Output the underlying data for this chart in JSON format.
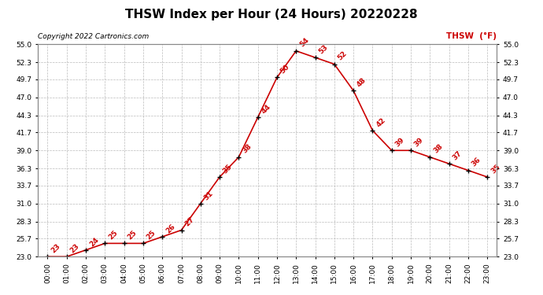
{
  "title": "THSW Index per Hour (24 Hours) 20220228",
  "copyright": "Copyright 2022 Cartronics.com",
  "legend_label": "THSW  (°F)",
  "hours": [
    0,
    1,
    2,
    3,
    4,
    5,
    6,
    7,
    8,
    9,
    10,
    11,
    12,
    13,
    14,
    15,
    16,
    17,
    18,
    19,
    20,
    21,
    22,
    23
  ],
  "values": [
    23,
    23,
    24,
    25,
    25,
    25,
    26,
    27,
    31,
    35,
    38,
    44,
    50,
    54,
    53,
    52,
    48,
    42,
    39,
    39,
    38,
    37,
    36,
    35
  ],
  "line_color": "#cc0000",
  "marker_color": "#000000",
  "label_color": "#cc0000",
  "ylim_min": 23.0,
  "ylim_max": 55.0,
  "yticks": [
    23.0,
    25.7,
    28.3,
    31.0,
    33.7,
    36.3,
    39.0,
    41.7,
    44.3,
    47.0,
    49.7,
    52.3,
    55.0
  ],
  "background_color": "#ffffff",
  "grid_color": "#bbbbbb",
  "title_fontsize": 11,
  "label_fontsize": 6.5,
  "tick_fontsize": 6.5,
  "copyright_fontsize": 6.5,
  "legend_fontsize": 7.5
}
